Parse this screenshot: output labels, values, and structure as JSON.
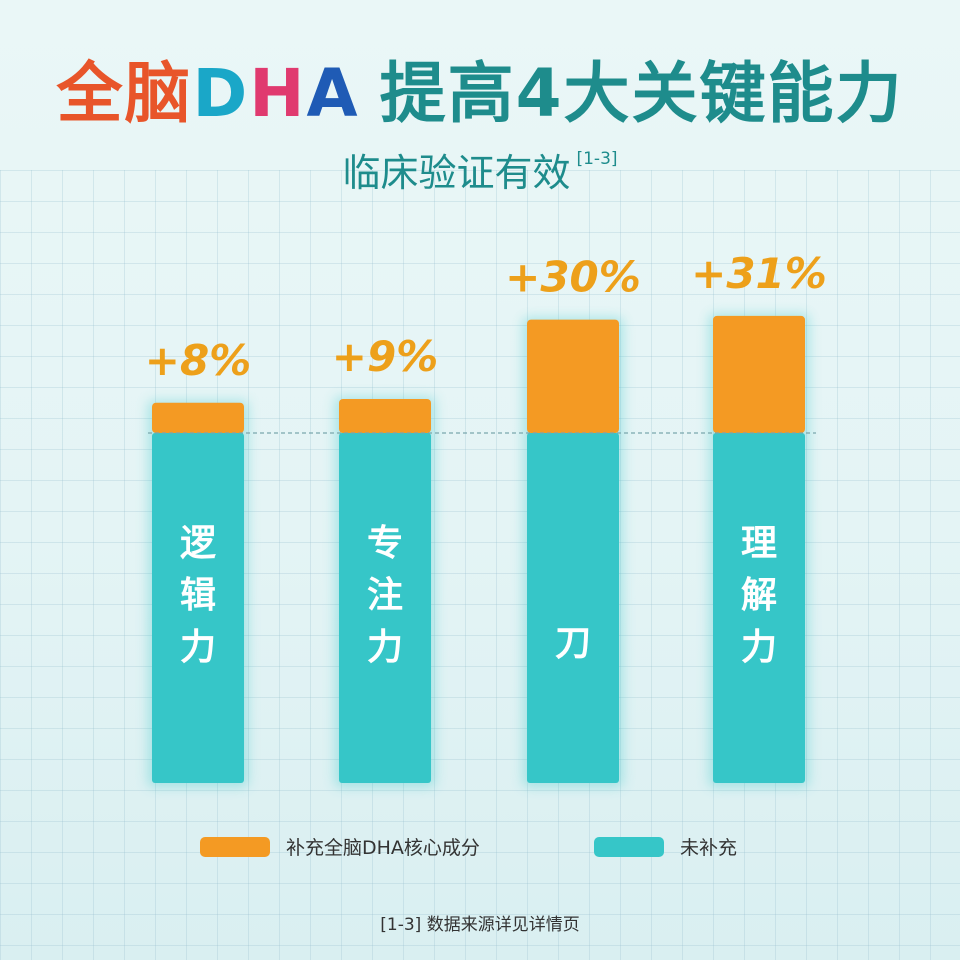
{
  "title": {
    "part1": "全脑",
    "part2": "D",
    "part3": "H",
    "part4": "A",
    "part5": "提高4大关键能力"
  },
  "subtitle": {
    "text": "临床验证有效",
    "ref": "[1-3]"
  },
  "chart_data": {
    "type": "bar",
    "stacked": true,
    "categories": [
      "逻辑力",
      "专注力",
      "",
      "理解力"
    ],
    "series": [
      {
        "name": "未补充",
        "values": [
          100,
          100,
          100,
          100
        ],
        "color": "#36c6c8"
      },
      {
        "name": "补充全脑DHA核心成分",
        "values": [
          8,
          9,
          30,
          31
        ],
        "color": "#f49a23"
      }
    ],
    "data_labels": [
      "+8%",
      "+9%",
      "+30%",
      "+31%"
    ],
    "partial_label_glyph": "刀",
    "ylim": [
      0,
      140
    ],
    "baseline_dashed": true,
    "legend_position": "bottom"
  },
  "legend": [
    {
      "label": "补充全脑DHA核心成分",
      "color": "#f49a23"
    },
    {
      "label": "未补充",
      "color": "#36c6c8"
    }
  ],
  "footnote": "[1-3] 数据来源详见详情页",
  "colors": {
    "label": "#eda01a",
    "teal": "#36c6c8",
    "orange": "#f49a23"
  }
}
